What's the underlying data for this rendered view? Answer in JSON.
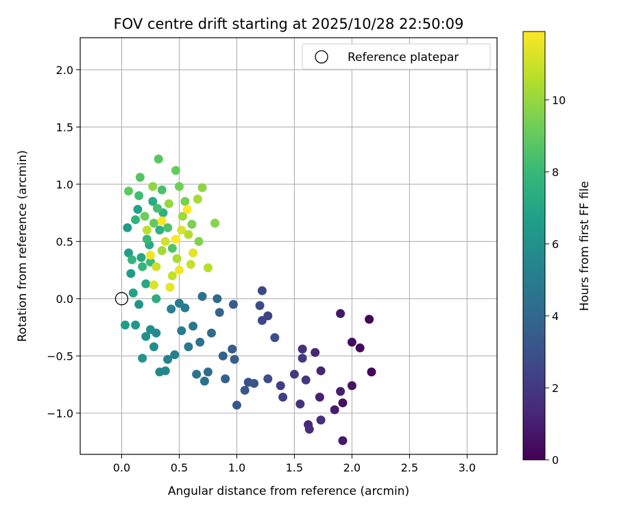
{
  "chart_data": {
    "type": "scatter",
    "title": "FOV centre drift starting at 2025/10/28 22:50:09",
    "xlabel": "Angular distance from reference (arcmin)",
    "ylabel": "Rotation from reference (arcmin)",
    "xlim": [
      -0.36,
      3.26
    ],
    "ylim": [
      -1.36,
      2.28
    ],
    "xticks": [
      0.0,
      0.5,
      1.0,
      1.5,
      2.0,
      2.5,
      3.0
    ],
    "xtick_labels": [
      "0.0",
      "0.5",
      "1.0",
      "1.5",
      "2.0",
      "2.5",
      "3.0"
    ],
    "yticks": [
      -1.0,
      -0.5,
      0.0,
      0.5,
      1.0,
      1.5,
      2.0
    ],
    "ytick_labels": [
      "−1.0",
      "−0.5",
      "0.0",
      "0.5",
      "1.0",
      "1.5",
      "2.0"
    ],
    "grid": true,
    "legend": {
      "position": "top-right",
      "entries": [
        "Reference platepar"
      ]
    },
    "reference_point": {
      "x": 0.0,
      "y": 0.0
    },
    "colorbar": {
      "label": "Hours from first FF file",
      "min": 0,
      "max": 11.9,
      "ticks": [
        0,
        2,
        4,
        6,
        8,
        10
      ],
      "tick_labels": [
        "0",
        "2",
        "4",
        "6",
        "8",
        "10"
      ],
      "colormap": [
        "#440154",
        "#482878",
        "#3e4989",
        "#31688e",
        "#26828e",
        "#1f9e89",
        "#35b779",
        "#6ece58",
        "#b5de2b",
        "#fde725"
      ]
    },
    "points_note": "each point: [angular distance, rotation, hours]",
    "points": [
      [
        2.15,
        -0.18,
        0.1
      ],
      [
        2.17,
        -0.64,
        0.2
      ],
      [
        2.07,
        -0.43,
        0.3
      ],
      [
        2.0,
        -0.38,
        0.4
      ],
      [
        1.92,
        -0.91,
        0.5
      ],
      [
        2.0,
        -0.76,
        0.6
      ],
      [
        1.9,
        -0.13,
        0.7
      ],
      [
        1.92,
        -1.24,
        0.8
      ],
      [
        1.85,
        -0.97,
        0.9
      ],
      [
        1.9,
        -0.81,
        1.0
      ],
      [
        1.72,
        -0.86,
        1.1
      ],
      [
        1.73,
        -0.63,
        1.2
      ],
      [
        1.68,
        -0.47,
        1.3
      ],
      [
        1.62,
        -1.1,
        1.4
      ],
      [
        1.63,
        -1.14,
        1.5
      ],
      [
        1.73,
        -1.06,
        1.6
      ],
      [
        1.57,
        -0.44,
        1.7
      ],
      [
        1.55,
        -0.92,
        1.8
      ],
      [
        1.6,
        -0.71,
        1.9
      ],
      [
        1.57,
        -0.52,
        2.0
      ],
      [
        1.5,
        -0.66,
        2.1
      ],
      [
        1.38,
        -0.76,
        2.2
      ],
      [
        1.4,
        -0.86,
        2.3
      ],
      [
        1.27,
        -0.15,
        2.4
      ],
      [
        1.22,
        -0.19,
        2.5
      ],
      [
        1.22,
        0.07,
        2.6
      ],
      [
        1.2,
        -0.06,
        2.7
      ],
      [
        1.27,
        -0.7,
        2.8
      ],
      [
        1.33,
        -0.34,
        2.9
      ],
      [
        1.1,
        -0.73,
        3.0
      ],
      [
        1.15,
        -0.74,
        3.1
      ],
      [
        1.07,
        -0.8,
        3.2
      ],
      [
        1.0,
        -0.93,
        3.3
      ],
      [
        0.97,
        -0.05,
        3.4
      ],
      [
        0.96,
        -0.44,
        3.5
      ],
      [
        0.98,
        -0.53,
        3.6
      ],
      [
        0.9,
        -0.7,
        3.7
      ],
      [
        0.88,
        -0.5,
        3.8
      ],
      [
        0.85,
        -0.12,
        3.9
      ],
      [
        0.83,
        0.0,
        4.0
      ],
      [
        0.78,
        -0.3,
        4.1
      ],
      [
        0.75,
        -0.64,
        4.2
      ],
      [
        0.72,
        -0.72,
        4.3
      ],
      [
        0.7,
        0.02,
        4.4
      ],
      [
        0.68,
        -0.38,
        4.5
      ],
      [
        0.65,
        -0.66,
        4.6
      ],
      [
        0.62,
        -0.24,
        4.7
      ],
      [
        0.58,
        -0.42,
        4.8
      ],
      [
        0.55,
        -0.08,
        4.9
      ],
      [
        0.52,
        -0.28,
        5.0
      ],
      [
        0.5,
        -0.04,
        5.1
      ],
      [
        0.46,
        -0.49,
        5.2
      ],
      [
        0.43,
        -0.09,
        5.3
      ],
      [
        0.4,
        -0.53,
        5.4
      ],
      [
        0.38,
        -0.63,
        5.5
      ],
      [
        0.33,
        -0.64,
        5.6
      ],
      [
        0.3,
        -0.3,
        5.7
      ],
      [
        0.28,
        -0.42,
        5.8
      ],
      [
        0.25,
        -0.27,
        5.9
      ],
      [
        0.21,
        -0.33,
        6.0
      ],
      [
        0.18,
        -0.52,
        6.1
      ],
      [
        0.15,
        -0.05,
        6.2
      ],
      [
        0.12,
        -0.23,
        6.3
      ],
      [
        0.08,
        0.22,
        6.4
      ],
      [
        0.05,
        0.62,
        6.5
      ],
      [
        0.03,
        -0.23,
        6.6
      ],
      [
        0.06,
        0.4,
        6.7
      ],
      [
        0.1,
        0.05,
        6.8
      ],
      [
        0.14,
        0.78,
        6.9
      ],
      [
        0.17,
        0.36,
        7.0
      ],
      [
        0.21,
        0.13,
        7.1
      ],
      [
        0.24,
        0.47,
        7.2
      ],
      [
        0.27,
        0.85,
        7.3
      ],
      [
        0.3,
        0.0,
        7.4
      ],
      [
        0.33,
        0.6,
        7.5
      ],
      [
        0.36,
        0.75,
        7.6
      ],
      [
        0.12,
        0.69,
        7.7
      ],
      [
        0.09,
        0.34,
        7.8
      ],
      [
        0.18,
        0.28,
        7.9
      ],
      [
        0.22,
        0.52,
        8.0
      ],
      [
        0.25,
        0.32,
        8.1
      ],
      [
        0.15,
        0.9,
        8.2
      ],
      [
        0.31,
        0.79,
        8.3
      ],
      [
        0.35,
        0.95,
        8.4
      ],
      [
        0.4,
        0.62,
        8.5
      ],
      [
        0.44,
        0.44,
        8.6
      ],
      [
        0.16,
        1.06,
        8.7
      ],
      [
        0.32,
        1.22,
        8.8
      ],
      [
        0.06,
        0.94,
        8.9
      ],
      [
        0.28,
        0.66,
        9.0
      ],
      [
        0.47,
        1.12,
        9.1
      ],
      [
        0.2,
        0.72,
        9.2
      ],
      [
        0.5,
        0.98,
        9.3
      ],
      [
        0.55,
        0.85,
        9.4
      ],
      [
        0.61,
        0.65,
        9.5
      ],
      [
        0.67,
        0.5,
        9.6
      ],
      [
        0.81,
        0.66,
        9.7
      ],
      [
        0.7,
        0.97,
        9.8
      ],
      [
        0.27,
        0.98,
        9.9
      ],
      [
        0.41,
        0.83,
        10.0
      ],
      [
        0.53,
        0.72,
        10.1
      ],
      [
        0.35,
        0.42,
        10.2
      ],
      [
        0.66,
        0.87,
        10.3
      ],
      [
        0.48,
        0.35,
        10.4
      ],
      [
        0.58,
        0.56,
        10.5
      ],
      [
        0.75,
        0.27,
        10.6
      ],
      [
        0.22,
        0.6,
        10.7
      ],
      [
        0.44,
        0.2,
        10.8
      ],
      [
        0.6,
        0.3,
        10.9
      ],
      [
        0.3,
        0.28,
        11.0
      ],
      [
        0.38,
        0.5,
        11.1
      ],
      [
        0.52,
        0.6,
        11.2
      ],
      [
        0.28,
        0.12,
        11.3
      ],
      [
        0.62,
        0.4,
        11.4
      ],
      [
        0.42,
        0.1,
        11.5
      ],
      [
        0.25,
        0.38,
        11.6
      ],
      [
        0.5,
        0.25,
        11.7
      ],
      [
        0.35,
        0.68,
        11.8
      ],
      [
        0.57,
        0.78,
        11.9
      ],
      [
        0.47,
        0.52,
        11.9
      ]
    ]
  }
}
